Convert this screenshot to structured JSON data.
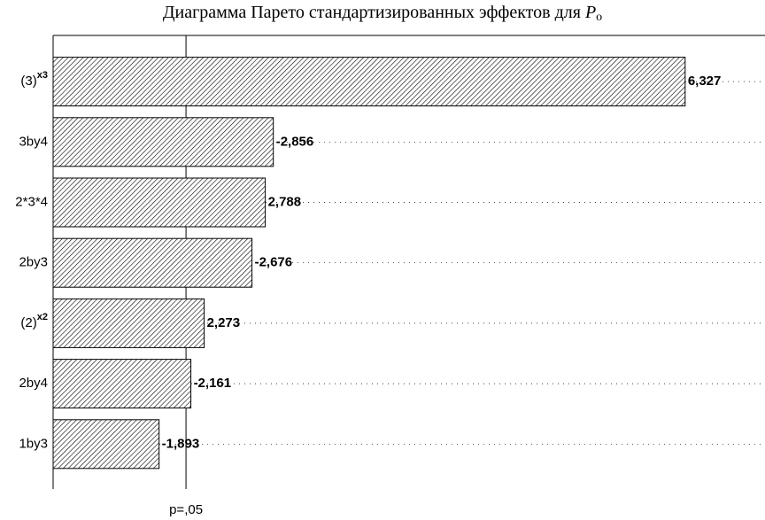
{
  "chart_data": {
    "type": "pareto",
    "title": "Диаграмма Парето стандартизированных эффектов для",
    "title_symbol": "P",
    "title_subscript": "o",
    "categories": [
      "(3)",
      "3by4",
      "2*3*4",
      "2by3",
      "(2)",
      "2by4",
      "1by3"
    ],
    "category_superscripts": [
      "x3",
      null,
      null,
      null,
      "x2",
      null,
      null
    ],
    "values": [
      6.327,
      -2.856,
      2.788,
      -2.676,
      2.273,
      -2.161,
      -1.893
    ],
    "value_labels": [
      "6,327",
      "-2,856",
      "2,788",
      "-2,676",
      "2,273",
      "-2,161",
      "-1,893"
    ],
    "xlim": [
      1.0,
      7.0
    ],
    "threshold": {
      "value": 2.12,
      "label": "p=,05"
    },
    "color": "#ffffff",
    "grid": true
  }
}
